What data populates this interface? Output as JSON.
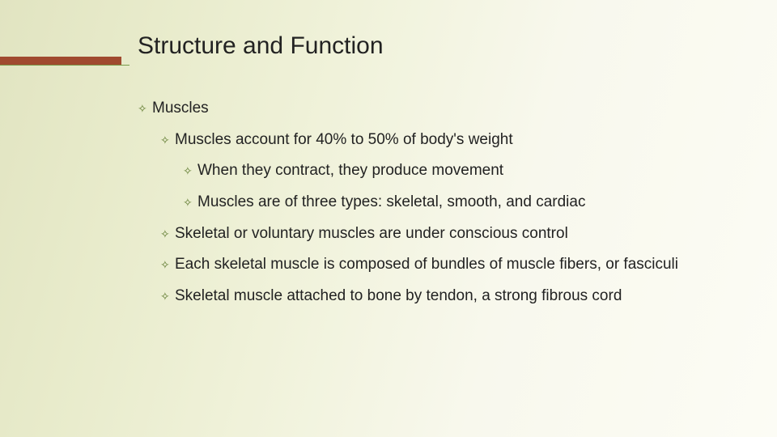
{
  "slide": {
    "title": "Structure and Function",
    "title_fontsize": 30,
    "title_color": "#222222",
    "background_gradient": [
      "#e1e4c1",
      "#e8ebcb",
      "#f0f2da",
      "#f8f8ed",
      "#fcfcf5"
    ],
    "accent_bar_color": "#a04a2f",
    "accent_line_color": "#7a9a4a",
    "bullet_glyph": "✧",
    "bullet_color": "#5f7a2e",
    "body_fontsize": 19,
    "body_color": "#222222",
    "items": [
      {
        "level": 1,
        "text": "Muscles"
      },
      {
        "level": 2,
        "text": "Muscles account for 40% to 50% of body's weight"
      },
      {
        "level": 3,
        "text": "When they contract, they produce movement"
      },
      {
        "level": 3,
        "text": "Muscles are of three types: skeletal, smooth, and cardiac"
      },
      {
        "level": 2,
        "text": "Skeletal or voluntary muscles are under conscious control"
      },
      {
        "level": 2,
        "text": "Each skeletal muscle is composed of bundles of muscle fibers, or fasciculi"
      },
      {
        "level": 2,
        "text": "Skeletal muscle attached to bone by tendon, a strong fibrous cord"
      }
    ]
  }
}
